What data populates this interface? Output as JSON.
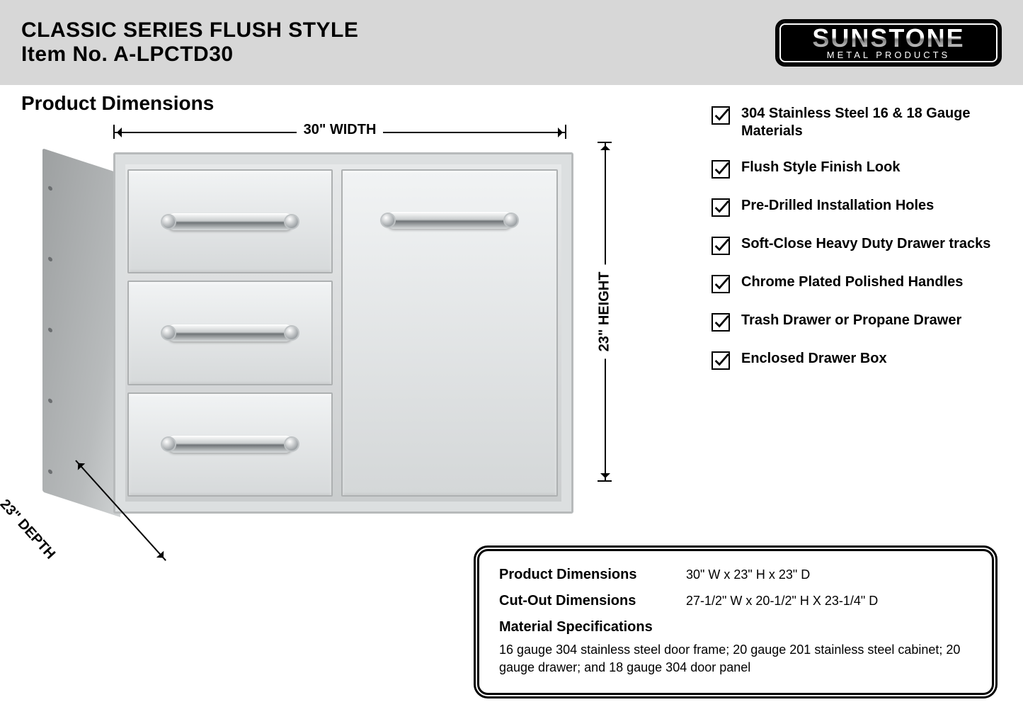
{
  "header": {
    "line1": "CLASSIC SERIES FLUSH STYLE",
    "line2": "Item No. A-LPCTD30",
    "bg_color": "#d7d7d7"
  },
  "logo": {
    "brand": "SUNSTONE",
    "subtitle": "METAL PRODUCTS"
  },
  "section_title": "Product Dimensions",
  "dimensions": {
    "width_label": "30\" WIDTH",
    "height_label": "23\" HEIGHT",
    "depth_label": "23\" DEPTH"
  },
  "product": {
    "drawer_count": 3,
    "colors": {
      "steel_light": "#f1f3f4",
      "steel_mid": "#d6d9da",
      "steel_dark": "#adb0b1",
      "side": "#b8bbbc",
      "handle_highlight": "#ffffff",
      "handle_shadow": "#6f7477"
    }
  },
  "features": [
    "304 Stainless Steel 16 & 18 Gauge Materials",
    "Flush Style Finish Look",
    "Pre-Drilled Installation Holes",
    "Soft-Close Heavy Duty Drawer tracks",
    "Chrome Plated Polished Handles",
    "Trash Drawer or Propane Drawer",
    "Enclosed Drawer Box"
  ],
  "spec_box": {
    "rows": [
      {
        "label": "Product Dimensions",
        "value": "30\" W x 23\" H x 23\" D"
      },
      {
        "label": "Cut-Out Dimensions",
        "value": "27-1/2\" W x 20-1/2\" H X 23-1/4\" D"
      }
    ],
    "material_heading": "Material Specifications",
    "material_body": "16 gauge 304 stainless steel door frame; 20 gauge 201 stainless steel cabinet; 20 gauge drawer; and 18 gauge 304 door panel"
  }
}
